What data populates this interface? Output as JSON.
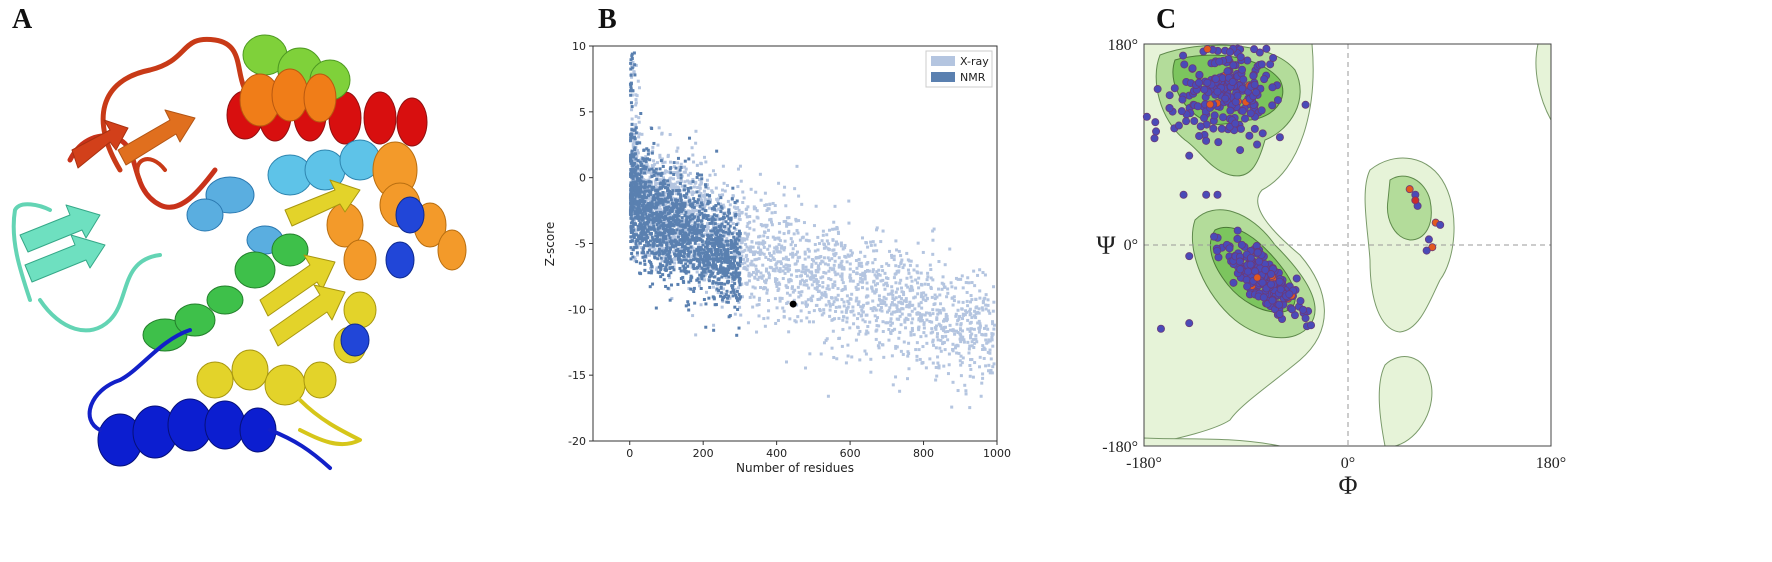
{
  "panels": {
    "a": "A",
    "b": "B",
    "c": "C"
  },
  "chart_data": [
    {
      "panel": "B",
      "type": "scatter",
      "xlabel": "Number of residues",
      "ylabel": "Z-score",
      "xlim": [
        -100,
        1000
      ],
      "ylim": [
        -20,
        10
      ],
      "x_ticks": [
        0,
        200,
        400,
        600,
        800,
        1000
      ],
      "y_ticks": [
        10,
        5,
        0,
        -5,
        -10,
        -15,
        -20
      ],
      "legend_position": "top-right",
      "series": [
        {
          "name": "X-ray",
          "color": "#b4c5e0",
          "description_points": "dense band decreasing from about 0 at 10 residues to about -12 at 1000 residues"
        },
        {
          "name": "NMR",
          "color": "#5a80b0",
          "description_points": "dense cloud from 0 to 300 residues, Z-scores -1 to -10"
        }
      ],
      "highlight_point": {
        "x": 445,
        "y": -9.6,
        "color": "#000000"
      }
    },
    {
      "panel": "C",
      "type": "scatter",
      "xlabel": "Φ",
      "ylabel": "Ψ",
      "xlim": [
        -180,
        180
      ],
      "ylim": [
        -180,
        180
      ],
      "x_tick_labels": [
        "-180°",
        "0°",
        "180°"
      ],
      "y_tick_labels": [
        "180°",
        "0°",
        "-180°"
      ],
      "regions_colors": {
        "allowed": "#e6f3d8",
        "favored": "#b3dc9a",
        "core": "#7cc55e"
      },
      "point_colors": {
        "general": "#4a4ab8",
        "glycine": "#e2581f",
        "outlier": "#cc2b2b"
      }
    }
  ]
}
